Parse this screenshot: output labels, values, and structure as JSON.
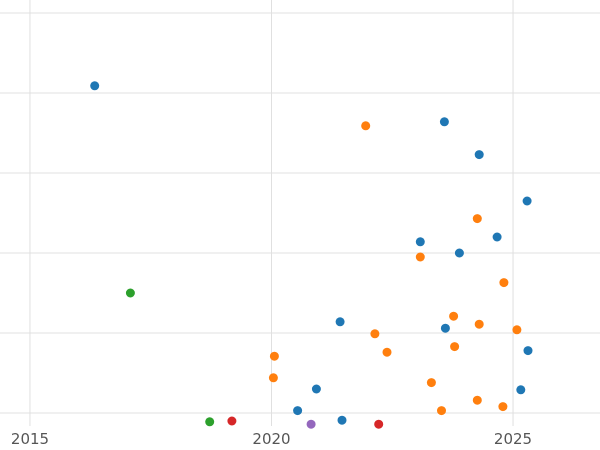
{
  "chart_data": {
    "type": "scatter",
    "title": "",
    "xlabel": "",
    "ylabel": "",
    "grid": true,
    "legend": "none",
    "x_ticks": [
      2015,
      2020,
      2025
    ],
    "x_tick_labels": [
      "2015",
      "2020",
      "2025"
    ],
    "x_range": [
      2014.38,
      2026.8
    ],
    "y_range": [
      -0.4625,
      5.1625
    ],
    "y_gridlines": [
      0,
      1,
      2,
      3,
      4,
      5
    ],
    "grid_color": "#e0e0e0",
    "tick_label_color": "#555555",
    "marker_radius": 4.5,
    "series": [
      {
        "name": "series-blue",
        "color": "#1f77b4",
        "points": [
          [
            2016.34,
            4.09
          ],
          [
            2023.58,
            3.64
          ],
          [
            2024.3,
            3.23
          ],
          [
            2025.29,
            2.65
          ],
          [
            2024.67,
            2.2
          ],
          [
            2023.08,
            2.14
          ],
          [
            2023.89,
            2.0
          ],
          [
            2021.42,
            1.14
          ],
          [
            2023.6,
            1.06
          ],
          [
            2025.31,
            0.78
          ],
          [
            2020.93,
            0.3
          ],
          [
            2025.16,
            0.29
          ],
          [
            2020.54,
            0.03
          ],
          [
            2021.46,
            -0.09
          ]
        ]
      },
      {
        "name": "series-orange",
        "color": "#ff7f0e",
        "points": [
          [
            2021.95,
            3.59
          ],
          [
            2024.26,
            2.43
          ],
          [
            2023.08,
            1.95
          ],
          [
            2024.81,
            1.63
          ],
          [
            2023.77,
            1.21
          ],
          [
            2024.3,
            1.11
          ],
          [
            2025.08,
            1.04
          ],
          [
            2022.14,
            0.99
          ],
          [
            2023.79,
            0.83
          ],
          [
            2022.39,
            0.76
          ],
          [
            2020.06,
            0.71
          ],
          [
            2020.04,
            0.44
          ],
          [
            2023.31,
            0.38
          ],
          [
            2024.26,
            0.16
          ],
          [
            2024.79,
            0.08
          ],
          [
            2023.52,
            0.03
          ]
        ]
      },
      {
        "name": "series-green",
        "color": "#2ca02c",
        "points": [
          [
            2017.08,
            1.5
          ],
          [
            2018.72,
            -0.11
          ]
        ]
      },
      {
        "name": "series-red",
        "color": "#d62728",
        "points": [
          [
            2019.18,
            -0.1
          ],
          [
            2022.22,
            -0.14
          ]
        ]
      },
      {
        "name": "series-purple",
        "color": "#9467bd",
        "points": [
          [
            2020.82,
            -0.14
          ]
        ]
      }
    ]
  }
}
